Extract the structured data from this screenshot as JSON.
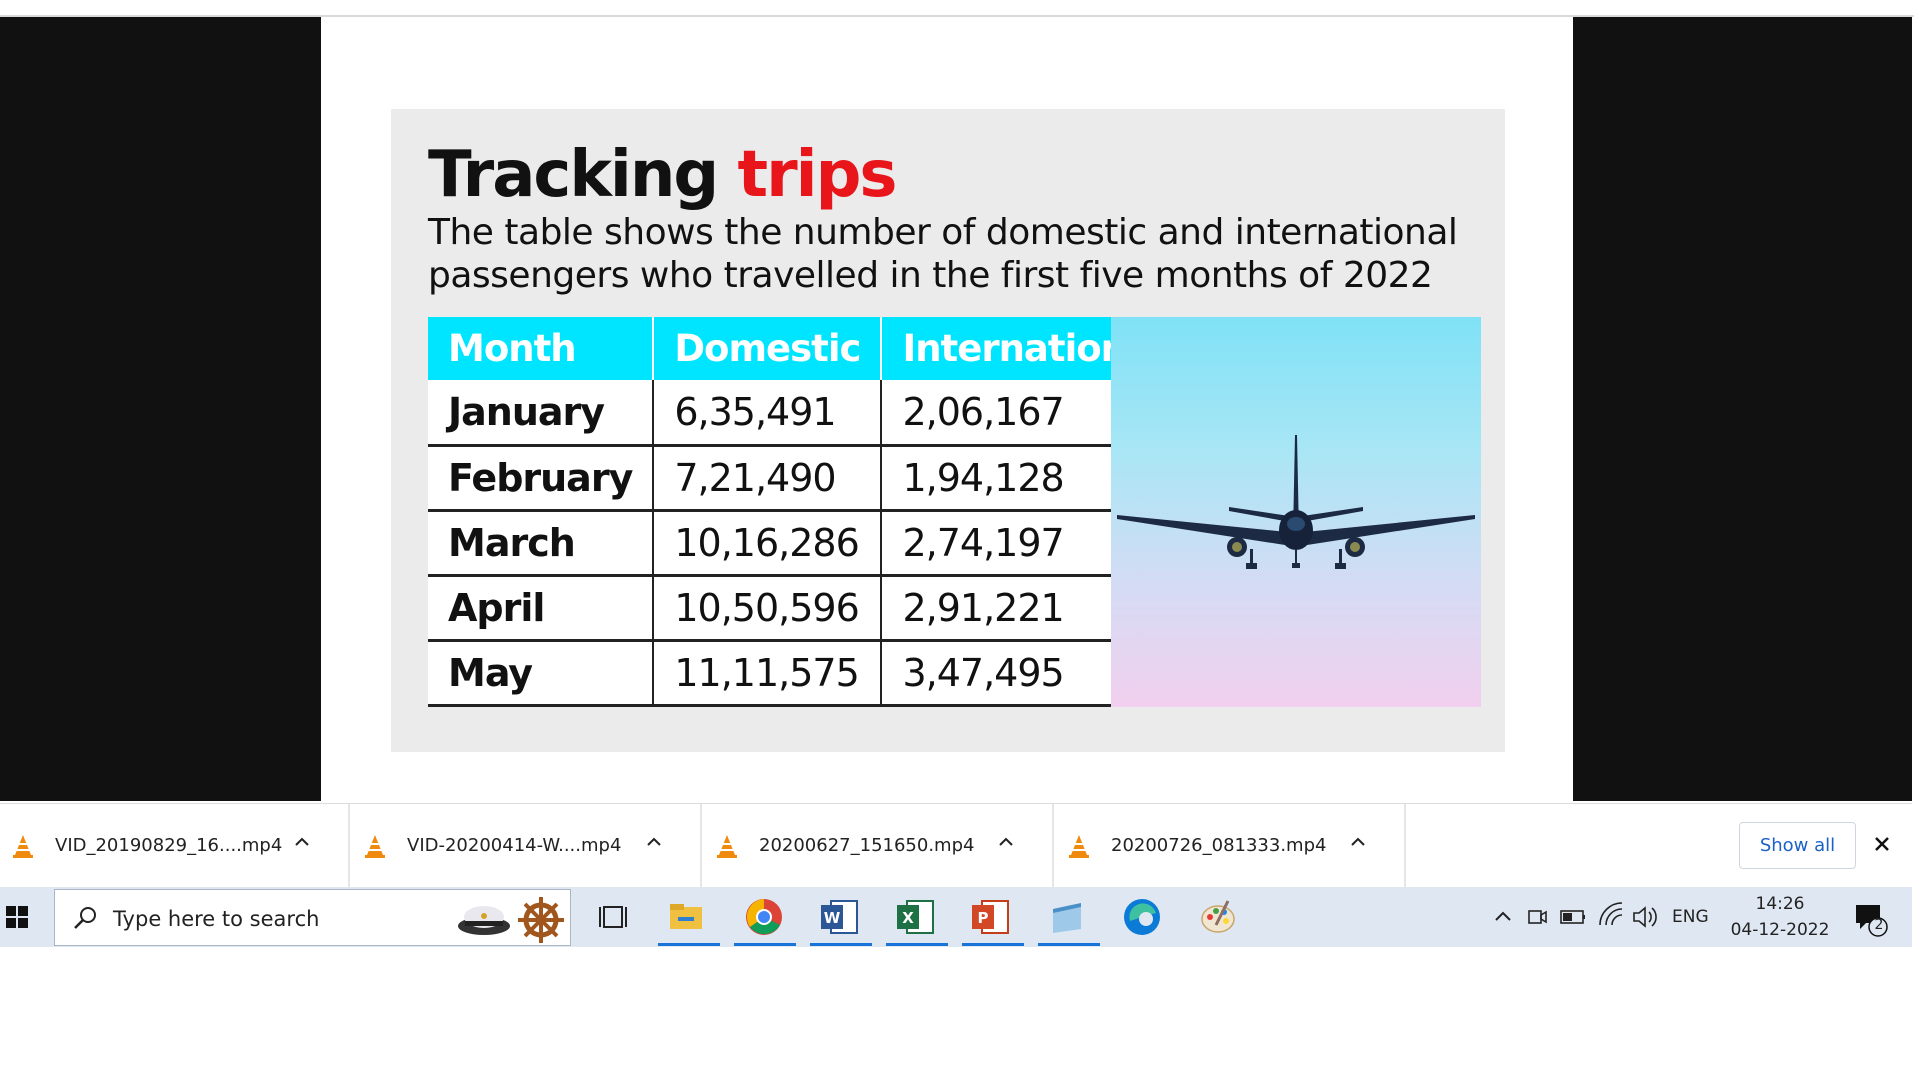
{
  "slide": {
    "title_main": "Tracking",
    "title_accent": "trips",
    "subtitle": "The table shows the number of domestic and international passengers who travelled in the first five months of 2022",
    "accent_color": "#e8151b",
    "header_color": "#00e5ff",
    "table": {
      "headers": [
        "Month",
        "Domestic",
        "International"
      ],
      "rows": [
        [
          "January",
          "6,35,491",
          "2,06,167"
        ],
        [
          "February",
          "7,21,490",
          "1,94,128"
        ],
        [
          "March",
          "10,16,286",
          "2,74,197"
        ],
        [
          "April",
          "10,50,596",
          "2,91,221"
        ],
        [
          "May",
          "11,11,575",
          "3,47,495"
        ]
      ]
    },
    "photo_icon": "airplane-photo"
  },
  "downloads": {
    "items": [
      {
        "name": "VID_20190829_16....mp4",
        "icon": "vlc-cone-icon"
      },
      {
        "name": "VID-20200414-W....mp4",
        "icon": "vlc-cone-icon"
      },
      {
        "name": "20200627_151650.mp4",
        "icon": "vlc-cone-icon"
      },
      {
        "name": "20200726_081333.mp4",
        "icon": "vlc-cone-icon"
      }
    ],
    "show_all": "Show all"
  },
  "taskbar": {
    "search_placeholder": "Type here to search",
    "apps": [
      "task-view",
      "file-explorer",
      "chrome",
      "word",
      "excel",
      "powerpoint",
      "notepad",
      "edge",
      "paint"
    ],
    "tray": {
      "language": "ENG",
      "time": "14:26",
      "date": "04-12-2022",
      "notification_count": "2"
    }
  }
}
